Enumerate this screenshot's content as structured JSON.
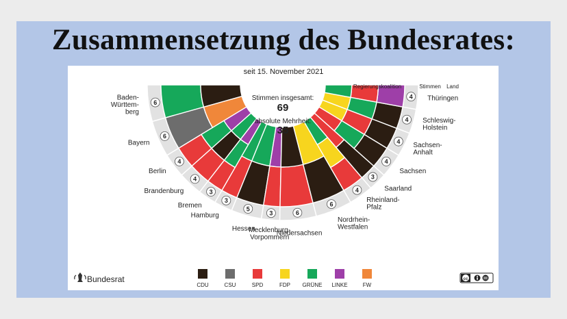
{
  "slide": {
    "title": "Zusammensetzung des Bundesrates:",
    "colors": {
      "background": "#ececec",
      "slide": "#b3c6e7",
      "panel": "#ffffff"
    }
  },
  "infographic": {
    "date_line": "seit 15. November 2021",
    "header_koalition": "Regierungskoalition",
    "header_stimmen": "Stimmen",
    "header_land": "Land",
    "center_total_label": "Stimmen insgesamt:",
    "center_total_value": "69",
    "center_majority_label": "absolute Mehrheit:",
    "center_majority_value": "35",
    "brand": "Bundesrat",
    "license": "CC BY-ND",
    "parties": [
      {
        "key": "CDU",
        "label": "CDU",
        "color": "#2b1d12"
      },
      {
        "key": "CSU",
        "label": "CSU",
        "color": "#6d6d6d"
      },
      {
        "key": "SPD",
        "label": "SPD",
        "color": "#e83a3a"
      },
      {
        "key": "FDP",
        "label": "FDP",
        "color": "#f7d51e"
      },
      {
        "key": "GRUENE",
        "label": "GRÜNE",
        "color": "#16a85a"
      },
      {
        "key": "LINKE",
        "label": "LINKE",
        "color": "#9e3fa8"
      },
      {
        "key": "FW",
        "label": "FW",
        "color": "#f0873a"
      }
    ],
    "states": [
      {
        "name": [
          "Baden-",
          "Württem-",
          "berg"
        ],
        "votes": 6,
        "coalition": [
          "GRUENE",
          "CDU"
        ]
      },
      {
        "name": [
          "Bayern"
        ],
        "votes": 6,
        "coalition": [
          "CSU",
          "FW"
        ]
      },
      {
        "name": [
          "Berlin"
        ],
        "votes": 4,
        "coalition": [
          "SPD",
          "GRUENE",
          "LINKE"
        ]
      },
      {
        "name": [
          "Brandenburg"
        ],
        "votes": 4,
        "coalition": [
          "SPD",
          "CDU",
          "GRUENE"
        ]
      },
      {
        "name": [
          "Bremen"
        ],
        "votes": 3,
        "coalition": [
          "SPD",
          "GRUENE",
          "LINKE"
        ]
      },
      {
        "name": [
          "Hamburg"
        ],
        "votes": 3,
        "coalition": [
          "SPD",
          "GRUENE"
        ]
      },
      {
        "name": [
          "Hessen"
        ],
        "votes": 5,
        "coalition": [
          "CDU",
          "GRUENE"
        ]
      },
      {
        "name": [
          "Mecklenburg-",
          "Vorpommern"
        ],
        "votes": 3,
        "coalition": [
          "SPD",
          "LINKE"
        ]
      },
      {
        "name": [
          "Niedersachsen"
        ],
        "votes": 6,
        "coalition": [
          "SPD",
          "CDU"
        ]
      },
      {
        "name": [
          "Nordrhein-",
          "Westfalen"
        ],
        "votes": 6,
        "coalition": [
          "CDU",
          "FDP"
        ]
      },
      {
        "name": [
          "Rheinland-",
          "Pfalz"
        ],
        "votes": 4,
        "coalition": [
          "SPD",
          "FDP",
          "GRUENE"
        ]
      },
      {
        "name": [
          "Saarland"
        ],
        "votes": 3,
        "coalition": [
          "CDU",
          "SPD"
        ]
      },
      {
        "name": [
          "Sachsen"
        ],
        "votes": 4,
        "coalition": [
          "CDU",
          "GRUENE",
          "SPD"
        ]
      },
      {
        "name": [
          "Sachsen-",
          "Anhalt"
        ],
        "votes": 4,
        "coalition": [
          "CDU",
          "SPD",
          "FDP"
        ]
      },
      {
        "name": [
          "Schleswig-",
          "Holstein"
        ],
        "votes": 4,
        "coalition": [
          "CDU",
          "GRUENE",
          "FDP"
        ]
      },
      {
        "name": [
          "Thüringen"
        ],
        "votes": 4,
        "coalition": [
          "LINKE",
          "SPD",
          "GRUENE"
        ]
      }
    ]
  }
}
